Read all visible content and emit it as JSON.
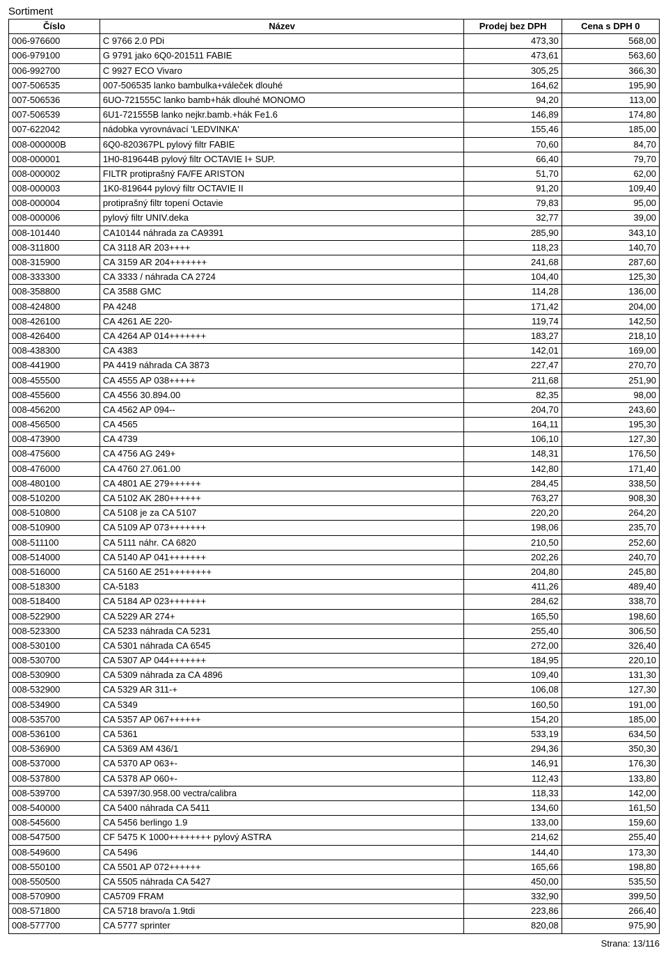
{
  "title": "Sortiment",
  "columns": [
    "Číslo",
    "Název",
    "Prodej bez DPH",
    "Cena s DPH 0"
  ],
  "footer": "Strana:  13/116",
  "rows": [
    [
      "006-976600",
      "C 9766  2.0 PDi",
      "473,30",
      "568,00"
    ],
    [
      "006-979100",
      "G 9791 jako 6Q0-201511 FABIE",
      "473,61",
      "563,60"
    ],
    [
      "006-992700",
      "C 9927 ECO Vivaro",
      "305,25",
      "366,30"
    ],
    [
      "007-506535",
      "007-506535 lanko bambulka+váleček dlouhé",
      "164,62",
      "195,90"
    ],
    [
      "007-506536",
      "6UO-721555C lanko bamb+hák dlouhé MONOMO",
      "94,20",
      "113,00"
    ],
    [
      "007-506539",
      "6U1-721555B lanko nejkr.bamb.+hák Fe1.6",
      "146,89",
      "174,80"
    ],
    [
      "007-622042",
      "nádobka vyrovnávací 'LEDVINKA'",
      "155,46",
      "185,00"
    ],
    [
      "008-000000B",
      "6Q0-820367PL pylový filtr FABIE",
      "70,60",
      "84,70"
    ],
    [
      "008-000001",
      "1H0-819644B pylový filtr OCTAVIE I+ SUP.",
      "66,40",
      "79,70"
    ],
    [
      "008-000002",
      "FILTR protiprašný FA/FE ARISTON",
      "51,70",
      "62,00"
    ],
    [
      "008-000003",
      "1K0-819644 pylový filtr OCTAVIE II",
      "91,20",
      "109,40"
    ],
    [
      "008-000004",
      "protiprašný filtr topení Octavie",
      "79,83",
      "95,00"
    ],
    [
      "008-000006",
      "pylový filtr UNIV.deka",
      "32,77",
      "39,00"
    ],
    [
      "008-101440",
      "CA10144 náhrada za CA9391",
      "285,90",
      "343,10"
    ],
    [
      "008-311800",
      "CA 3118  AR 203++++",
      "118,23",
      "140,70"
    ],
    [
      "008-315900",
      "CA 3159  AR 204+++++++",
      "241,68",
      "287,60"
    ],
    [
      "008-333300",
      "CA 3333   / náhrada CA 2724",
      "104,40",
      "125,30"
    ],
    [
      "008-358800",
      "CA 3588    GMC",
      "114,28",
      "136,00"
    ],
    [
      "008-424800",
      "PA 4248",
      "171,42",
      "204,00"
    ],
    [
      "008-426100",
      "CA 4261  AE 220-",
      "119,74",
      "142,50"
    ],
    [
      "008-426400",
      "CA 4264  AP 014+++++++",
      "183,27",
      "218,10"
    ],
    [
      "008-438300",
      "CA 4383",
      "142,01",
      "169,00"
    ],
    [
      "008-441900",
      "PA 4419 náhrada CA 3873",
      "227,47",
      "270,70"
    ],
    [
      "008-455500",
      "CA 4555  AP 038+++++",
      "211,68",
      "251,90"
    ],
    [
      "008-455600",
      "CA 4556   30.894.00",
      "82,35",
      "98,00"
    ],
    [
      "008-456200",
      "CA 4562  AP 094--",
      "204,70",
      "243,60"
    ],
    [
      "008-456500",
      "CA 4565",
      "164,11",
      "195,30"
    ],
    [
      "008-473900",
      "CA 4739",
      "106,10",
      "127,30"
    ],
    [
      "008-475600",
      "CA 4756  AG 249+",
      "148,31",
      "176,50"
    ],
    [
      "008-476000",
      "CA 4760   27.061.00",
      "142,80",
      "171,40"
    ],
    [
      "008-480100",
      "CA 4801  AE 279++++++",
      "284,45",
      "338,50"
    ],
    [
      "008-510200",
      "CA 5102  AK 280++++++",
      "763,27",
      "908,30"
    ],
    [
      "008-510800",
      "CA 5108 je za CA 5107",
      "220,20",
      "264,20"
    ],
    [
      "008-510900",
      "CA 5109  AP 073+++++++",
      "198,06",
      "235,70"
    ],
    [
      "008-511100",
      "CA 5111 náhr. CA 6820",
      "210,50",
      "252,60"
    ],
    [
      "008-514000",
      "CA 5140  AP 041+++++++",
      "202,26",
      "240,70"
    ],
    [
      "008-516000",
      "CA 5160  AE 251++++++++",
      "204,80",
      "245,80"
    ],
    [
      "008-518300",
      "CA-5183",
      "411,26",
      "489,40"
    ],
    [
      "008-518400",
      "CA 5184  AP 023+++++++",
      "284,62",
      "338,70"
    ],
    [
      "008-522900",
      "CA 5229  AR 274+",
      "165,50",
      "198,60"
    ],
    [
      "008-523300",
      "CA 5233  náhrada CA 5231",
      "255,40",
      "306,50"
    ],
    [
      "008-530100",
      "CA 5301 náhrada CA 6545",
      "272,00",
      "326,40"
    ],
    [
      "008-530700",
      "CA 5307  AP 044+++++++",
      "184,95",
      "220,10"
    ],
    [
      "008-530900",
      "CA 5309  náhrada za CA 4896",
      "109,40",
      "131,30"
    ],
    [
      "008-532900",
      "CA 5329  AR 311-+",
      "106,08",
      "127,30"
    ],
    [
      "008-534900",
      "CA 5349",
      "160,50",
      "191,00"
    ],
    [
      "008-535700",
      "CA 5357    AP 067++++++",
      "154,20",
      "185,00"
    ],
    [
      "008-536100",
      "CA 5361",
      "533,19",
      "634,50"
    ],
    [
      "008-536900",
      "CA 5369  AM 436/1",
      "294,36",
      "350,30"
    ],
    [
      "008-537000",
      "CA 5370  AP 063+-",
      "146,91",
      "176,30"
    ],
    [
      "008-537800",
      "CA 5378  AP 060+-",
      "112,43",
      "133,80"
    ],
    [
      "008-539700",
      "CA 5397/30.958.00 vectra/calibra",
      "118,33",
      "142,00"
    ],
    [
      "008-540000",
      "CA 5400 náhrada CA 5411",
      "134,60",
      "161,50"
    ],
    [
      "008-545600",
      "CA 5456  berlingo 1.9",
      "133,00",
      "159,60"
    ],
    [
      "008-547500",
      "CF 5475  K 1000++++++++ pylový ASTRA",
      "214,62",
      "255,40"
    ],
    [
      "008-549600",
      "CA 5496",
      "144,40",
      "173,30"
    ],
    [
      "008-550100",
      "CA 5501  AP 072++++++",
      "165,66",
      "198,80"
    ],
    [
      "008-550500",
      "CA 5505 náhrada CA 5427",
      "450,00",
      "535,50"
    ],
    [
      "008-570900",
      "CA5709 FRAM",
      "332,90",
      "399,50"
    ],
    [
      "008-571800",
      "CA 5718  bravo/a 1.9tdi",
      "223,86",
      "266,40"
    ],
    [
      "008-577700",
      "CA 5777 sprinter",
      "820,08",
      "975,90"
    ]
  ]
}
